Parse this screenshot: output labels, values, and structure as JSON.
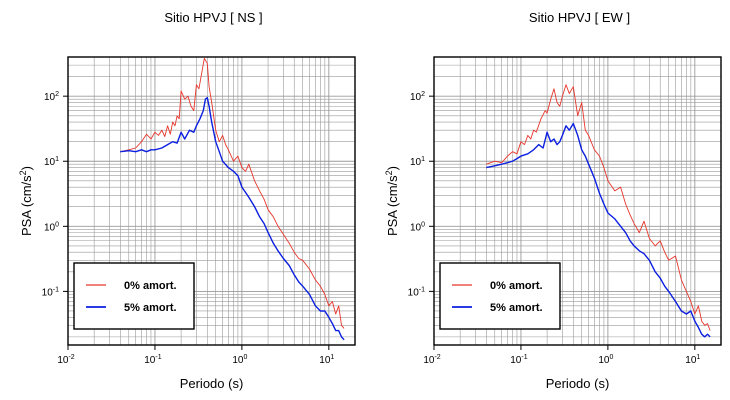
{
  "chart_data": [
    {
      "type": "line",
      "title": "Sitio HPVJ [ NS ]",
      "xlabel": "Periodo (s)",
      "ylabel": "PSA (cm/s²)",
      "xscale": "log",
      "yscale": "log",
      "xlim": [
        0.01,
        20
      ],
      "ylim": [
        0.015,
        400
      ],
      "grid": true,
      "legend_position": "bottom-left",
      "x_ticks": [
        {
          "value": 0.01,
          "base": "10",
          "exp": "-2"
        },
        {
          "value": 0.1,
          "base": "10",
          "exp": "-1"
        },
        {
          "value": 1,
          "base": "10",
          "exp": "0"
        },
        {
          "value": 10,
          "base": "10",
          "exp": "1"
        }
      ],
      "y_ticks": [
        {
          "value": 0.1,
          "base": "10",
          "exp": "-1"
        },
        {
          "value": 1,
          "base": "10",
          "exp": "0"
        },
        {
          "value": 10,
          "base": "10",
          "exp": "1"
        },
        {
          "value": 100,
          "base": "10",
          "exp": "2"
        }
      ],
      "series": [
        {
          "name": "0% amort.",
          "color": "#e8352b",
          "x": [
            0.04,
            0.05,
            0.06,
            0.07,
            0.08,
            0.09,
            0.1,
            0.11,
            0.12,
            0.13,
            0.14,
            0.15,
            0.16,
            0.17,
            0.18,
            0.19,
            0.2,
            0.22,
            0.24,
            0.26,
            0.28,
            0.3,
            0.32,
            0.35,
            0.37,
            0.4,
            0.42,
            0.45,
            0.5,
            0.55,
            0.6,
            0.65,
            0.7,
            0.8,
            0.9,
            1.0,
            1.1,
            1.2,
            1.4,
            1.6,
            1.8,
            2.0,
            2.3,
            2.6,
            3.0,
            3.5,
            4.0,
            4.5,
            5.0,
            6.0,
            7.0,
            8.0,
            9.0,
            10.0,
            11.0,
            12.0,
            13.0,
            14.0,
            15.0
          ],
          "y": [
            14,
            15,
            16,
            20,
            26,
            22,
            28,
            25,
            30,
            24,
            35,
            26,
            40,
            35,
            50,
            45,
            120,
            90,
            100,
            70,
            60,
            150,
            130,
            250,
            380,
            320,
            140,
            80,
            30,
            20,
            25,
            18,
            15,
            10,
            12,
            8,
            7,
            9,
            5,
            3.5,
            2.6,
            1.8,
            1.4,
            1.0,
            0.75,
            0.55,
            0.4,
            0.32,
            0.3,
            0.22,
            0.15,
            0.12,
            0.09,
            0.06,
            0.07,
            0.045,
            0.06,
            0.03,
            0.027
          ]
        },
        {
          "name": "5% amort.",
          "color": "#0b1fe0",
          "x": [
            0.04,
            0.05,
            0.06,
            0.07,
            0.08,
            0.09,
            0.1,
            0.12,
            0.14,
            0.16,
            0.18,
            0.2,
            0.22,
            0.25,
            0.28,
            0.3,
            0.33,
            0.36,
            0.38,
            0.4,
            0.42,
            0.45,
            0.5,
            0.55,
            0.6,
            0.7,
            0.8,
            0.9,
            1.0,
            1.2,
            1.4,
            1.6,
            1.8,
            2.0,
            2.3,
            2.6,
            3.0,
            3.5,
            4.0,
            4.5,
            5.0,
            6.0,
            7.0,
            8.0,
            9.0,
            10.0,
            11.0,
            12.0,
            13.0,
            14.0,
            15.0
          ],
          "y": [
            14,
            14.5,
            14,
            15,
            14,
            15,
            15,
            16,
            18,
            20,
            19,
            28,
            22,
            30,
            28,
            35,
            45,
            60,
            90,
            95,
            70,
            40,
            20,
            14,
            10,
            8,
            7,
            6,
            4,
            2.8,
            2.0,
            1.4,
            1.1,
            0.8,
            0.55,
            0.42,
            0.32,
            0.25,
            0.18,
            0.14,
            0.12,
            0.09,
            0.06,
            0.05,
            0.05,
            0.04,
            0.032,
            0.025,
            0.025,
            0.02,
            0.018
          ]
        }
      ]
    },
    {
      "type": "line",
      "title": "Sitio HPVJ [ EW ]",
      "xlabel": "Periodo (s)",
      "ylabel": "PSA (cm/s²)",
      "xscale": "log",
      "yscale": "log",
      "xlim": [
        0.01,
        20
      ],
      "ylim": [
        0.015,
        400
      ],
      "grid": true,
      "legend_position": "bottom-left",
      "x_ticks": [
        {
          "value": 0.01,
          "base": "10",
          "exp": "-2"
        },
        {
          "value": 0.1,
          "base": "10",
          "exp": "-1"
        },
        {
          "value": 1,
          "base": "10",
          "exp": "0"
        },
        {
          "value": 10,
          "base": "10",
          "exp": "1"
        }
      ],
      "y_ticks": [
        {
          "value": 0.1,
          "base": "10",
          "exp": "-1"
        },
        {
          "value": 1,
          "base": "10",
          "exp": "0"
        },
        {
          "value": 10,
          "base": "10",
          "exp": "1"
        },
        {
          "value": 100,
          "base": "10",
          "exp": "2"
        }
      ],
      "series": [
        {
          "name": "0% amort.",
          "color": "#e8352b",
          "x": [
            0.04,
            0.05,
            0.06,
            0.07,
            0.08,
            0.09,
            0.1,
            0.11,
            0.12,
            0.13,
            0.14,
            0.15,
            0.17,
            0.19,
            0.2,
            0.22,
            0.24,
            0.26,
            0.28,
            0.3,
            0.33,
            0.36,
            0.4,
            0.45,
            0.5,
            0.55,
            0.6,
            0.7,
            0.8,
            0.9,
            1.0,
            1.2,
            1.4,
            1.6,
            1.8,
            2.0,
            2.3,
            2.6,
            3.0,
            3.5,
            4.0,
            4.5,
            5.0,
            6.0,
            7.0,
            8.0,
            9.0,
            10.0,
            11.0,
            12.0,
            13.0,
            14.0,
            15.0
          ],
          "y": [
            9,
            10,
            9.5,
            12,
            14,
            13,
            20,
            18,
            25,
            22,
            30,
            28,
            45,
            60,
            55,
            90,
            130,
            80,
            70,
            100,
            150,
            110,
            140,
            50,
            80,
            30,
            25,
            15,
            12,
            8,
            5,
            3.5,
            4.0,
            2.2,
            1.5,
            1.1,
            0.8,
            1.2,
            0.65,
            0.5,
            0.6,
            0.4,
            0.3,
            0.35,
            0.15,
            0.1,
            0.07,
            0.045,
            0.06,
            0.035,
            0.03,
            0.032,
            0.025
          ]
        },
        {
          "name": "5% amort.",
          "color": "#0b1fe0",
          "x": [
            0.04,
            0.05,
            0.06,
            0.07,
            0.08,
            0.09,
            0.1,
            0.12,
            0.14,
            0.16,
            0.18,
            0.2,
            0.22,
            0.24,
            0.26,
            0.28,
            0.3,
            0.33,
            0.36,
            0.4,
            0.45,
            0.5,
            0.55,
            0.6,
            0.7,
            0.8,
            0.9,
            1.0,
            1.2,
            1.4,
            1.6,
            1.8,
            2.0,
            2.3,
            2.6,
            3.0,
            3.5,
            4.0,
            4.5,
            5.0,
            6.0,
            7.0,
            8.0,
            9.0,
            10.0,
            11.0,
            12.0,
            13.0,
            14.0,
            15.0
          ],
          "y": [
            8,
            8.5,
            9,
            9.5,
            10,
            11,
            12,
            13,
            15,
            18,
            16,
            28,
            20,
            22,
            18,
            20,
            25,
            35,
            30,
            38,
            25,
            15,
            12,
            9,
            5.5,
            3.2,
            2.2,
            1.6,
            1.3,
            1.0,
            0.8,
            0.6,
            0.5,
            0.42,
            0.38,
            0.3,
            0.2,
            0.16,
            0.12,
            0.1,
            0.07,
            0.05,
            0.045,
            0.05,
            0.035,
            0.028,
            0.022,
            0.02,
            0.022,
            0.02
          ]
        }
      ]
    }
  ]
}
